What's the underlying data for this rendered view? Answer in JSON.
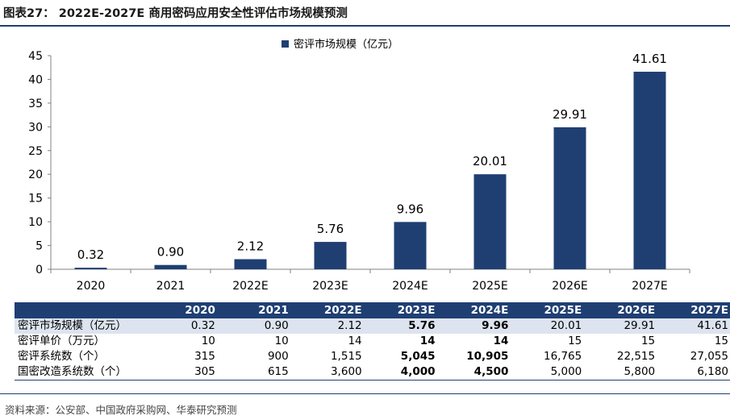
{
  "header": {
    "title": "图表27： 2022E-2027E 商用密码应用安全性评估市场规模预测"
  },
  "chart_data": {
    "type": "bar",
    "categories": [
      "2020",
      "2021",
      "2022E",
      "2023E",
      "2024E",
      "2025E",
      "2026E",
      "2027E"
    ],
    "series": [
      {
        "name": "密评市场规模（亿元）",
        "values": [
          0.32,
          0.9,
          2.12,
          5.76,
          9.96,
          20.01,
          29.91,
          41.61
        ]
      }
    ],
    "data_labels": [
      "0.32",
      "0.90",
      "2.12",
      "5.76",
      "9.96",
      "20.01",
      "29.91",
      "41.61"
    ],
    "yticks": [
      "0",
      "5",
      "10",
      "15",
      "20",
      "25",
      "30",
      "35",
      "40",
      "45"
    ],
    "ylim": [
      0,
      45
    ],
    "legend_position": "top-center",
    "bar_color": "#1f3f73",
    "grid": false
  },
  "table": {
    "headers": [
      "",
      "2020",
      "2021",
      "2022E",
      "2023E",
      "2024E",
      "2025E",
      "2026E",
      "2027E"
    ],
    "rows": [
      {
        "label": "密评市场规模（亿元）",
        "values": [
          "0.32",
          "0.90",
          "2.12",
          "5.76",
          "9.96",
          "20.01",
          "29.91",
          "41.61"
        ]
      },
      {
        "label": "密评单价（万元）",
        "values": [
          "10",
          "10",
          "14",
          "14",
          "14",
          "15",
          "15",
          "15"
        ]
      },
      {
        "label": "密评系统数（个）",
        "values": [
          "315",
          "900",
          "1,515",
          "5,045",
          "10,905",
          "16,765",
          "22,515",
          "27,055"
        ]
      },
      {
        "label": "国密改造系统数（个）",
        "values": [
          "305",
          "615",
          "3,600",
          "4,000",
          "4,500",
          "5,000",
          "5,800",
          "6,180"
        ]
      }
    ]
  },
  "footer": {
    "source": "资料来源：公安部、中国政府采购网、华泰研究预测"
  }
}
